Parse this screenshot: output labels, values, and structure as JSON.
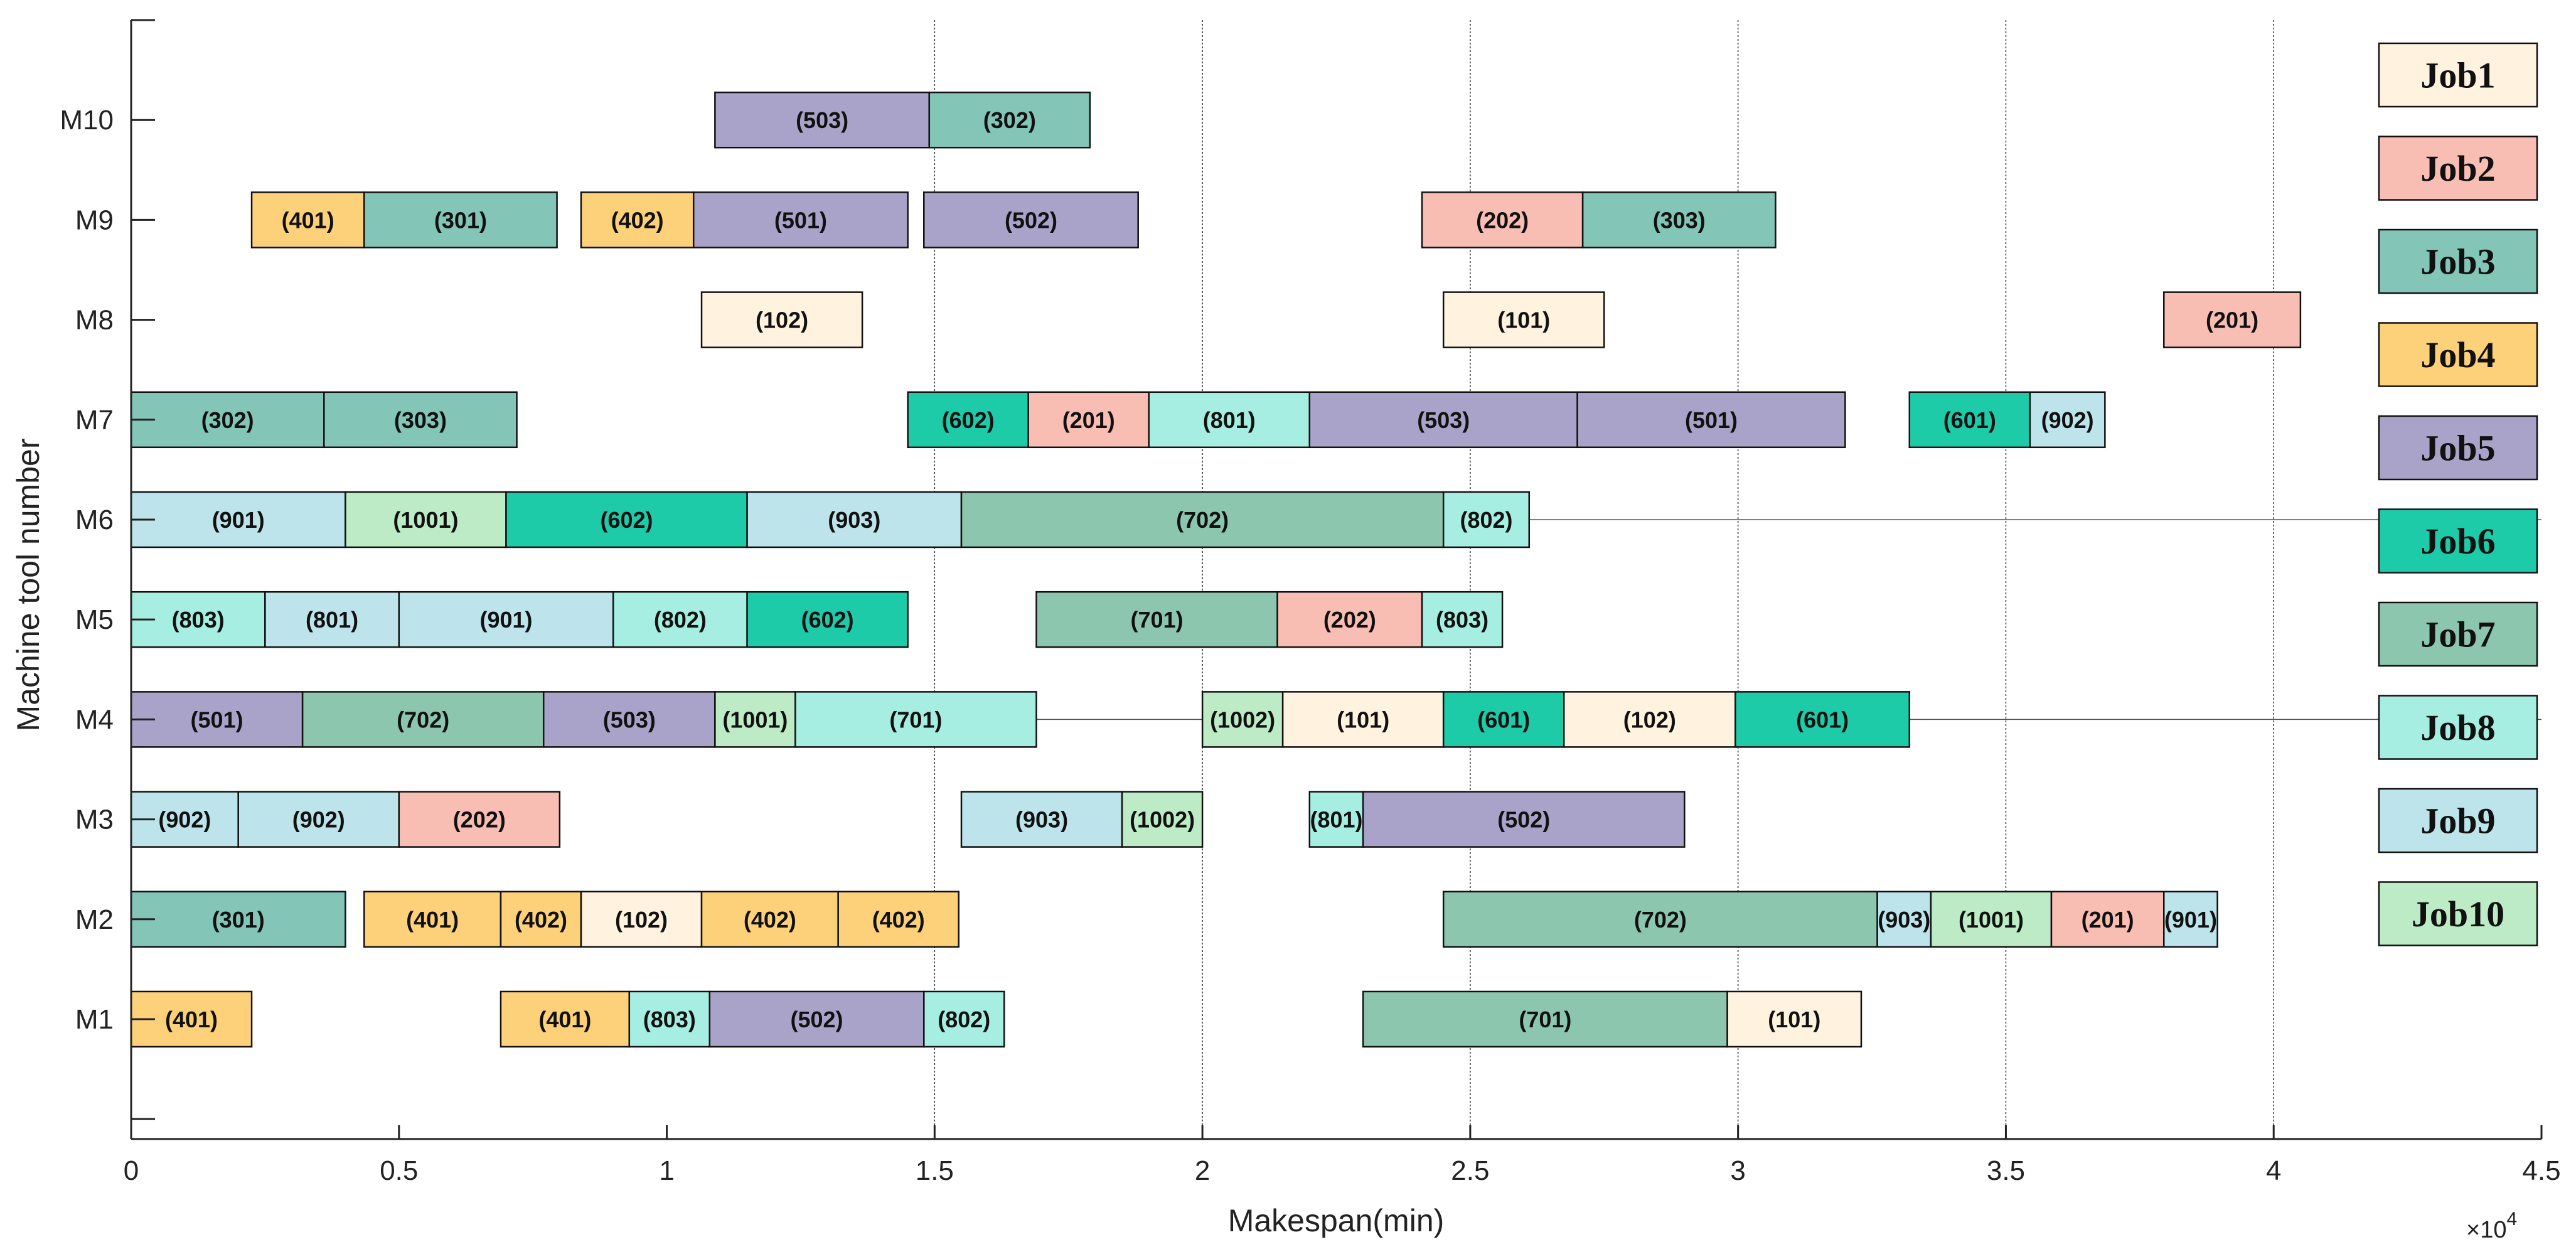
{
  "chart_data": {
    "type": "gantt",
    "xlabel": "Makespan(min)",
    "ylabel": "Machine tool number",
    "x_scale_label": "×10",
    "x_scale_exponent": "4",
    "xlim": [
      0,
      45000
    ],
    "x_ticks": [
      0,
      5000,
      10000,
      15000,
      20000,
      25000,
      30000,
      35000,
      40000,
      45000
    ],
    "x_tick_labels": [
      "0",
      "0.5",
      "1",
      "1.5",
      "2",
      "2.5",
      "3",
      "3.5",
      "4",
      "4.5"
    ],
    "ylim": [
      -0.2,
      11.0
    ],
    "machines": [
      "M1",
      "M2",
      "M3",
      "M4",
      "M5",
      "M6",
      "M7",
      "M8",
      "M9",
      "M10"
    ],
    "vertical_gridlines": [
      15000,
      20000,
      25000,
      30000,
      35000,
      40000
    ],
    "legend": [
      {
        "name": "Job1",
        "color": "#FFF2DE"
      },
      {
        "name": "Job2",
        "color": "#F8BDB3"
      },
      {
        "name": "Job3",
        "color": "#83C5B7"
      },
      {
        "name": "Job4",
        "color": "#FDD07A"
      },
      {
        "name": "Job5",
        "color": "#AAA3C9"
      },
      {
        "name": "Job6",
        "color": "#1ECBA9"
      },
      {
        "name": "Job7",
        "color": "#8CC6AE"
      },
      {
        "name": "Job8",
        "color": "#A6EEE1"
      },
      {
        "name": "Job9",
        "color": "#BDE4EA"
      },
      {
        "name": "Job10",
        "color": "#BDEBC6"
      }
    ],
    "operations": [
      {
        "machine": "M1",
        "label": "(401)",
        "job": "Job4",
        "start": 0,
        "end": 2250
      },
      {
        "machine": "M1",
        "label": "(401)",
        "job": "Job4",
        "start": 6900,
        "end": 9300
      },
      {
        "machine": "M1",
        "label": "(803)",
        "job": "Job8",
        "start": 9300,
        "end": 10800
      },
      {
        "machine": "M1",
        "label": "(502)",
        "job": "Job5",
        "start": 10800,
        "end": 14800
      },
      {
        "machine": "M1",
        "label": "(802)",
        "job": "Job8",
        "start": 14800,
        "end": 16300
      },
      {
        "machine": "M1",
        "label": "(701)",
        "job": "Job7",
        "start": 23000,
        "end": 29800
      },
      {
        "machine": "M1",
        "label": "(101)",
        "job": "Job1",
        "start": 29800,
        "end": 32300
      },
      {
        "machine": "M2",
        "label": "(301)",
        "job": "Job3",
        "start": 0,
        "end": 4000
      },
      {
        "machine": "M2",
        "label": "(401)",
        "job": "Job4",
        "start": 4350,
        "end": 6900
      },
      {
        "machine": "M2",
        "label": "(402)",
        "job": "Job4",
        "start": 6900,
        "end": 8400
      },
      {
        "machine": "M2",
        "label": "(102)",
        "job": "Job1",
        "start": 8400,
        "end": 10650
      },
      {
        "machine": "M2",
        "label": "(402)",
        "job": "Job4",
        "start": 10650,
        "end": 13200
      },
      {
        "machine": "M2",
        "label": "(402)",
        "job": "Job4",
        "start": 13200,
        "end": 15450
      },
      {
        "machine": "M2",
        "label": "(702)",
        "job": "Job7",
        "start": 24500,
        "end": 32600
      },
      {
        "machine": "M2",
        "label": "(903)",
        "job": "Job9",
        "start": 32600,
        "end": 33600
      },
      {
        "machine": "M2",
        "label": "(1001)",
        "job": "Job10",
        "start": 33600,
        "end": 35850
      },
      {
        "machine": "M2",
        "label": "(201)",
        "job": "Job2",
        "start": 35850,
        "end": 37950
      },
      {
        "machine": "M2",
        "label": "(901)",
        "job": "Job9",
        "start": 37950,
        "end": 38950
      },
      {
        "machine": "M3",
        "label": "(902)",
        "job": "Job9",
        "start": 0,
        "end": 2000
      },
      {
        "machine": "M3",
        "label": "(902)",
        "job": "Job9",
        "start": 2000,
        "end": 5000
      },
      {
        "machine": "M3",
        "label": "(202)",
        "job": "Job2",
        "start": 5000,
        "end": 8000
      },
      {
        "machine": "M3",
        "label": "(903)",
        "job": "Job9",
        "start": 15500,
        "end": 18500
      },
      {
        "machine": "M3",
        "label": "(1002)",
        "job": "Job10",
        "start": 18500,
        "end": 20000
      },
      {
        "machine": "M3",
        "label": "(801)",
        "job": "Job8",
        "start": 22000,
        "end": 23000
      },
      {
        "machine": "M3",
        "label": "(502)",
        "job": "Job5",
        "start": 23000,
        "end": 29000
      },
      {
        "machine": "M4",
        "label": "(501)",
        "job": "Job5",
        "start": 0,
        "end": 3200
      },
      {
        "machine": "M4",
        "label": "(702)",
        "job": "Job7",
        "start": 3200,
        "end": 7700
      },
      {
        "machine": "M4",
        "label": "(503)",
        "job": "Job5",
        "start": 7700,
        "end": 10900
      },
      {
        "machine": "M4",
        "label": "(1001)",
        "job": "Job10",
        "start": 10900,
        "end": 12400
      },
      {
        "machine": "M4",
        "label": "(701)",
        "job": "Job8",
        "start": 12400,
        "end": 16900
      },
      {
        "machine": "M4",
        "label": "(1002)",
        "job": "Job10",
        "start": 20000,
        "end": 21500
      },
      {
        "machine": "M4",
        "label": "(101)",
        "job": "Job1",
        "start": 21500,
        "end": 24500
      },
      {
        "machine": "M4",
        "label": "(601)",
        "job": "Job6",
        "start": 24500,
        "end": 26750
      },
      {
        "machine": "M4",
        "label": "(102)",
        "job": "Job1",
        "start": 26750,
        "end": 29950
      },
      {
        "machine": "M4",
        "label": "(601)",
        "job": "Job6",
        "start": 29950,
        "end": 33200
      },
      {
        "machine": "M5",
        "label": "(803)",
        "job": "Job8",
        "start": 0,
        "end": 2500
      },
      {
        "machine": "M5",
        "label": "(801)",
        "job": "Job9",
        "start": 2500,
        "end": 5000
      },
      {
        "machine": "M5",
        "label": "(901)",
        "job": "Job9",
        "start": 5000,
        "end": 9000
      },
      {
        "machine": "M5",
        "label": "(802)",
        "job": "Job8",
        "start": 9000,
        "end": 11500
      },
      {
        "machine": "M5",
        "label": "(602)",
        "job": "Job6",
        "start": 11500,
        "end": 14500
      },
      {
        "machine": "M5",
        "label": "(701)",
        "job": "Job7",
        "start": 16900,
        "end": 21400
      },
      {
        "machine": "M5",
        "label": "(202)",
        "job": "Job2",
        "start": 21400,
        "end": 24100
      },
      {
        "machine": "M5",
        "label": "(803)",
        "job": "Job8",
        "start": 24100,
        "end": 25600
      },
      {
        "machine": "M6",
        "label": "(901)",
        "job": "Job9",
        "start": 0,
        "end": 4000
      },
      {
        "machine": "M6",
        "label": "(1001)",
        "job": "Job10",
        "start": 4000,
        "end": 7000
      },
      {
        "machine": "M6",
        "label": "(602)",
        "job": "Job6",
        "start": 7000,
        "end": 11500
      },
      {
        "machine": "M6",
        "label": "(903)",
        "job": "Job9",
        "start": 11500,
        "end": 15500
      },
      {
        "machine": "M6",
        "label": "(702)",
        "job": "Job7",
        "start": 15500,
        "end": 24500
      },
      {
        "machine": "M6",
        "label": "(802)",
        "job": "Job8",
        "start": 24500,
        "end": 26100
      },
      {
        "machine": "M7",
        "label": "(302)",
        "job": "Job3",
        "start": 0,
        "end": 3600
      },
      {
        "machine": "M7",
        "label": "(303)",
        "job": "Job3",
        "start": 3600,
        "end": 7200
      },
      {
        "machine": "M7",
        "label": "(602)",
        "job": "Job6",
        "start": 14500,
        "end": 16750
      },
      {
        "machine": "M7",
        "label": "(201)",
        "job": "Job2",
        "start": 16750,
        "end": 19000
      },
      {
        "machine": "M7",
        "label": "(801)",
        "job": "Job8",
        "start": 19000,
        "end": 22000
      },
      {
        "machine": "M7",
        "label": "(503)",
        "job": "Job5",
        "start": 22000,
        "end": 27000
      },
      {
        "machine": "M7",
        "label": "(501)",
        "job": "Job5",
        "start": 27000,
        "end": 32000
      },
      {
        "machine": "M7",
        "label": "(601)",
        "job": "Job6",
        "start": 33200,
        "end": 35450
      },
      {
        "machine": "M7",
        "label": "(902)",
        "job": "Job9",
        "start": 35450,
        "end": 36850
      },
      {
        "machine": "M8",
        "label": "(102)",
        "job": "Job1",
        "start": 10650,
        "end": 13650
      },
      {
        "machine": "M8",
        "label": "(101)",
        "job": "Job1",
        "start": 24500,
        "end": 27500
      },
      {
        "machine": "M8",
        "label": "(201)",
        "job": "Job2",
        "start": 37950,
        "end": 40500
      },
      {
        "machine": "M9",
        "label": "(401)",
        "job": "Job4",
        "start": 2250,
        "end": 4350
      },
      {
        "machine": "M9",
        "label": "(301)",
        "job": "Job3",
        "start": 4350,
        "end": 7950
      },
      {
        "machine": "M9",
        "label": "(402)",
        "job": "Job4",
        "start": 8400,
        "end": 10500
      },
      {
        "machine": "M9",
        "label": "(501)",
        "job": "Job5",
        "start": 10500,
        "end": 14500
      },
      {
        "machine": "M9",
        "label": "(502)",
        "job": "Job5",
        "start": 14800,
        "end": 18800
      },
      {
        "machine": "M9",
        "label": "(202)",
        "job": "Job2",
        "start": 24100,
        "end": 27100
      },
      {
        "machine": "M9",
        "label": "(303)",
        "job": "Job3",
        "start": 27100,
        "end": 30700
      },
      {
        "machine": "M10",
        "label": "(503)",
        "job": "Job5",
        "start": 10900,
        "end": 14900
      },
      {
        "machine": "M10",
        "label": "(302)",
        "job": "Job3",
        "start": 14900,
        "end": 17900
      }
    ],
    "guide_lines": [
      {
        "machine": "M6",
        "from": 26100,
        "to": 45000
      },
      {
        "machine": "M4",
        "from": 16900,
        "to": 20000
      },
      {
        "machine": "M4",
        "from": 33200,
        "to": 45000
      }
    ]
  }
}
